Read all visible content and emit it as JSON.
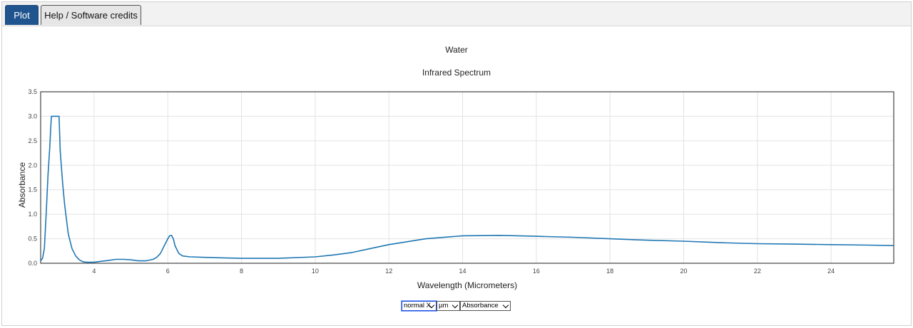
{
  "tabs": [
    {
      "label": "Plot",
      "active": true
    },
    {
      "label": "Help / Software credits",
      "active": false
    }
  ],
  "controls": {
    "x_mode": "normal X",
    "x_unit": "µm",
    "y_mode": "Absorbance"
  },
  "colors": {
    "line": "#1f77b4",
    "active_tab": "#20548f"
  },
  "chart_data": {
    "type": "line",
    "title": "Water",
    "subtitle": "Infrared Spectrum",
    "xlabel": "Wavelength (Micrometers)",
    "ylabel": "Absorbance",
    "xlim": [
      2.55,
      25.7
    ],
    "ylim": [
      0,
      3.5
    ],
    "xticks": [
      4,
      6,
      8,
      10,
      12,
      14,
      16,
      18,
      20,
      22,
      24
    ],
    "yticks": [
      "0.0",
      "0.5",
      "1.0",
      "1.5",
      "2.0",
      "2.5",
      "3.0",
      "3.5"
    ],
    "grid": true,
    "series": [
      {
        "x": [
          2.55,
          2.6,
          2.65,
          2.7,
          2.75,
          2.8,
          2.82,
          2.84,
          2.86,
          2.9,
          3.0,
          3.05,
          3.08,
          3.1,
          3.15,
          3.2,
          3.3,
          3.4,
          3.5,
          3.6,
          3.7,
          3.8,
          3.9,
          4.0,
          4.2,
          4.4,
          4.6,
          4.8,
          5.0,
          5.2,
          5.4,
          5.6,
          5.7,
          5.8,
          5.9,
          6.0,
          6.05,
          6.1,
          6.15,
          6.2,
          6.3,
          6.4,
          6.6,
          7.0,
          7.5,
          8.0,
          9.0,
          10.0,
          10.5,
          11.0,
          11.5,
          12.0,
          13.0,
          14.0,
          15.0,
          16.0,
          17.0,
          18.0,
          19.0,
          20.0,
          21.0,
          22.0,
          23.0,
          24.0,
          25.0,
          25.7
        ],
        "y": [
          0.05,
          0.1,
          0.3,
          1.0,
          1.8,
          2.4,
          2.7,
          3.0,
          3.0,
          3.0,
          3.0,
          3.0,
          2.3,
          2.1,
          1.6,
          1.2,
          0.6,
          0.3,
          0.15,
          0.07,
          0.03,
          0.02,
          0.02,
          0.02,
          0.04,
          0.06,
          0.08,
          0.08,
          0.07,
          0.05,
          0.05,
          0.08,
          0.12,
          0.2,
          0.35,
          0.5,
          0.56,
          0.57,
          0.5,
          0.35,
          0.2,
          0.15,
          0.13,
          0.12,
          0.11,
          0.1,
          0.1,
          0.13,
          0.17,
          0.22,
          0.3,
          0.38,
          0.5,
          0.56,
          0.57,
          0.55,
          0.53,
          0.5,
          0.47,
          0.45,
          0.42,
          0.4,
          0.39,
          0.38,
          0.37,
          0.36
        ]
      }
    ]
  }
}
